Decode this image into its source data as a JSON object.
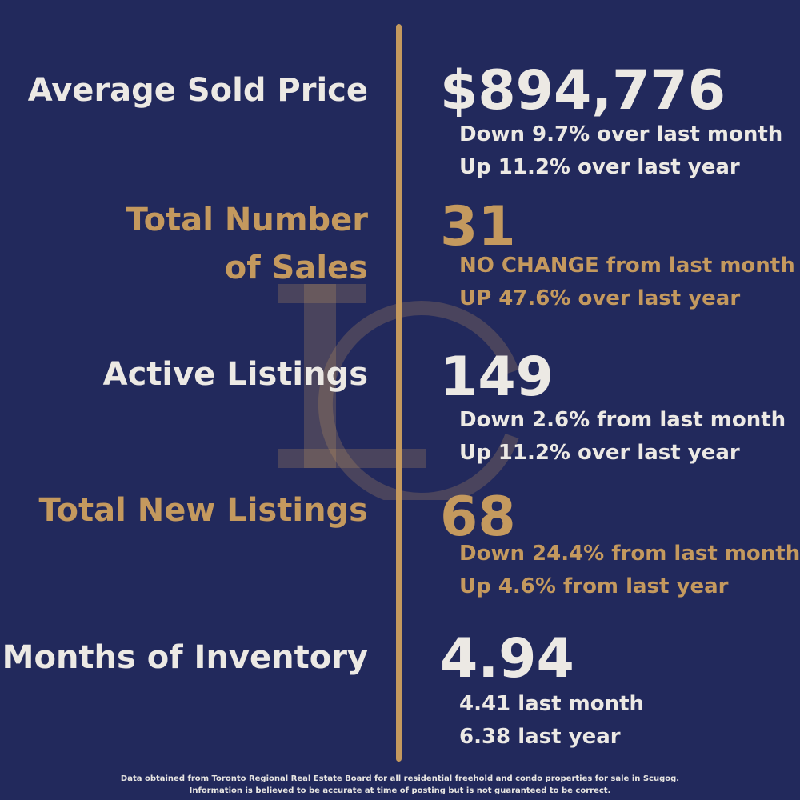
{
  "colors": {
    "background": "#22295c",
    "accent": "#c4995e",
    "text": "#ece9e4"
  },
  "watermark_icon": "lc-monogram-logo",
  "stats": [
    {
      "label": "Average Sold Price",
      "value": "$894,776",
      "notes": [
        "Down 9.7% over last month",
        "Up 11.2% over last year"
      ]
    },
    {
      "label_lines": [
        "Total Number",
        "of Sales"
      ],
      "value": "31",
      "notes": [
        "NO CHANGE from last month",
        "UP 47.6% over last year"
      ]
    },
    {
      "label": "Active Listings",
      "value": "149",
      "notes": [
        "Down 2.6% from last month",
        "Up 11.2% over last year"
      ]
    },
    {
      "label": "Total New Listings",
      "value": "68",
      "notes": [
        "Down 24.4% from last month",
        "Up 4.6% from last year"
      ]
    },
    {
      "label": "Months of Inventory",
      "value": "4.94",
      "notes": [
        "4.41 last month",
        "6.38 last year"
      ]
    }
  ],
  "footer": {
    "line1": "Data obtained from Toronto Regional Real Estate Board for all residential freehold and condo properties for sale in Scugog.",
    "line2": "Information is believed to be accurate at time of posting but is not guaranteed to be correct."
  }
}
